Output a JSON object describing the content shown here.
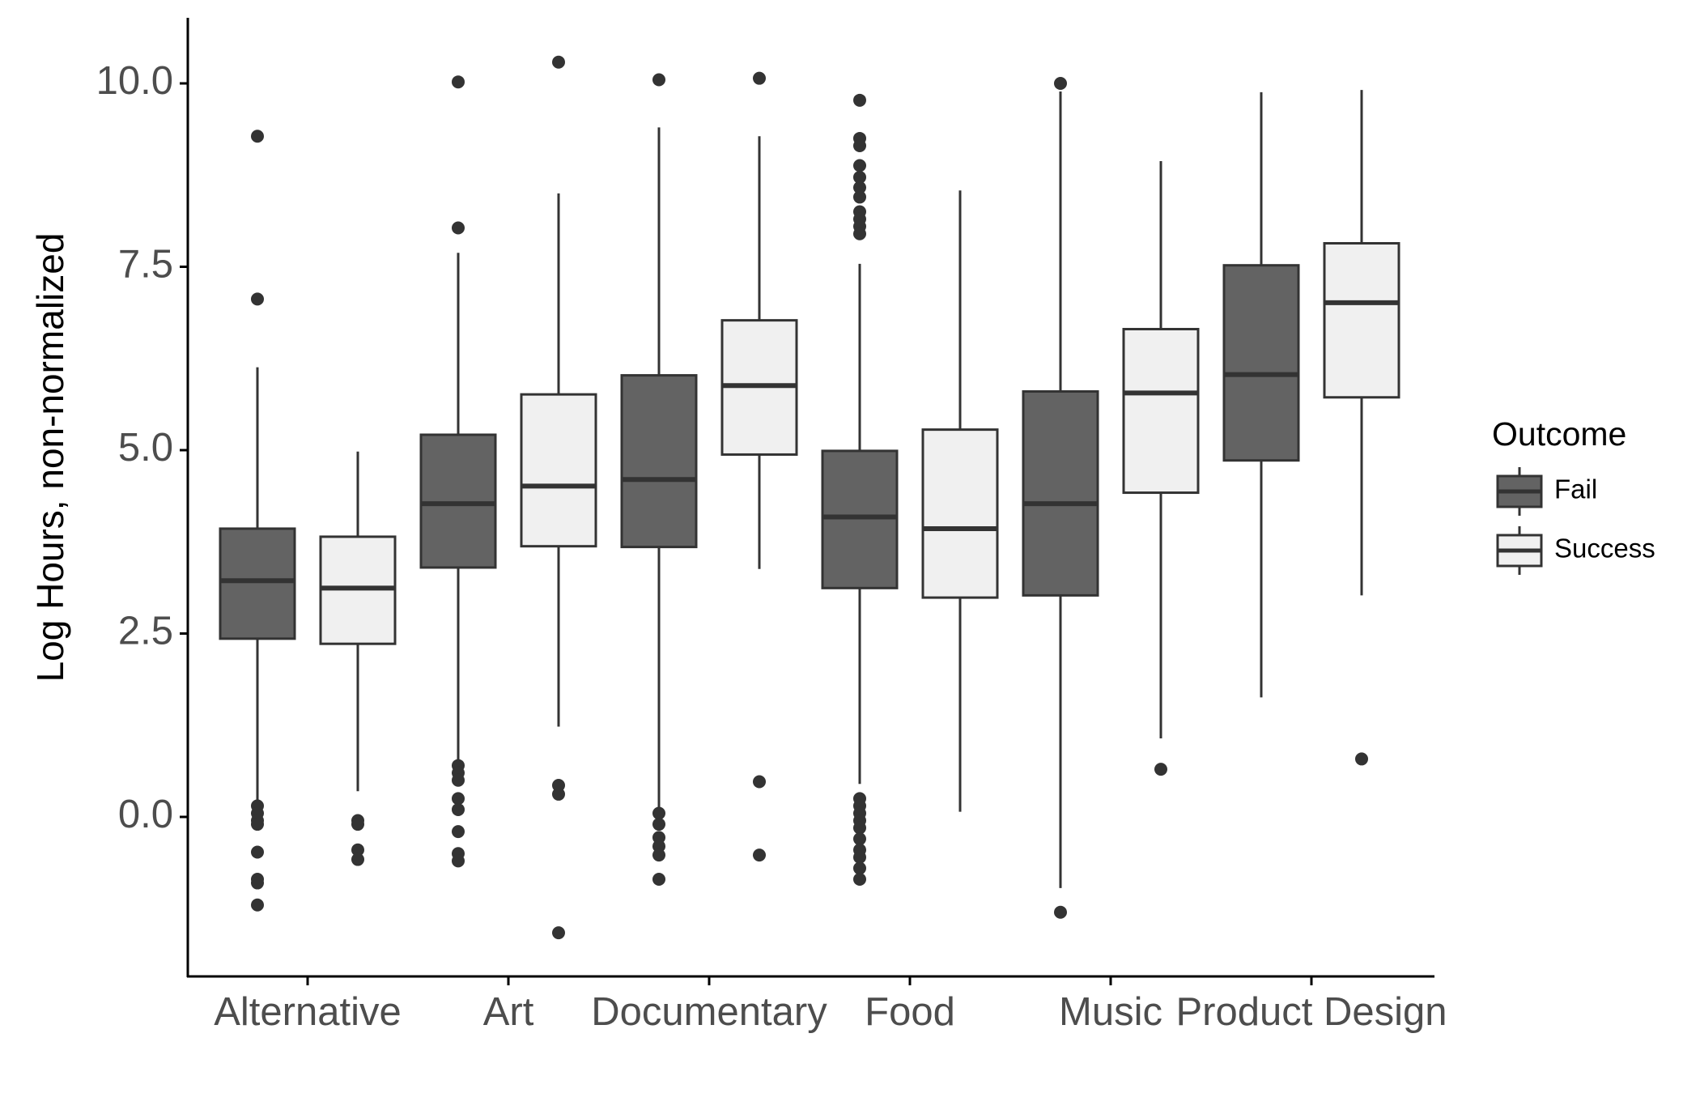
{
  "chart_data": {
    "type": "boxplot",
    "title": "",
    "xlabel": "",
    "ylabel": "Log Hours, non-normalized",
    "ylim": [
      -2.1,
      10.9
    ],
    "yticks": [
      "0.0",
      "2.5",
      "5.0",
      "7.5",
      "10.0"
    ],
    "ytick_values": [
      0,
      2.5,
      5,
      7.5,
      10
    ],
    "grid": false,
    "categories": [
      "Alternative",
      "Art",
      "Documentary",
      "Food",
      "Music",
      "Product Design"
    ],
    "legend": {
      "title": "Outcome",
      "placement": "right",
      "entries": [
        "Fail",
        "Success"
      ]
    },
    "colors": {
      "Fail": "#636363",
      "Success": "#f0f0f0",
      "outline": "#333333"
    },
    "series": [
      {
        "name": "Fail",
        "boxes": [
          {
            "category": "Alternative",
            "whisker_low": 0.15,
            "q1": 2.43,
            "median": 3.22,
            "q3": 3.93,
            "whisker_high": 6.13,
            "outliers": [
              9.28,
              7.06,
              0.15,
              0.05,
              -0.05,
              -0.1,
              -0.48,
              -0.85,
              -0.9,
              -1.2
            ]
          },
          {
            "category": "Art",
            "whisker_low": 0.75,
            "q1": 3.4,
            "median": 4.27,
            "q3": 5.21,
            "whisker_high": 7.69,
            "outliers": [
              10.02,
              8.03,
              0.7,
              0.6,
              0.5,
              0.25,
              0.1,
              -0.2,
              -0.5,
              -0.6
            ]
          },
          {
            "category": "Documentary",
            "whisker_low": 0.1,
            "q1": 3.68,
            "median": 4.6,
            "q3": 6.02,
            "whisker_high": 9.4,
            "outliers": [
              10.05,
              0.05,
              -0.1,
              -0.28,
              -0.4,
              -0.52,
              -0.85
            ]
          },
          {
            "category": "Food",
            "whisker_low": 0.45,
            "q1": 3.12,
            "median": 4.09,
            "q3": 4.99,
            "whisker_high": 7.54,
            "outliers": [
              9.77,
              9.25,
              9.15,
              8.88,
              8.72,
              8.58,
              8.45,
              8.25,
              8.15,
              8.05,
              7.95,
              0.25,
              0.15,
              0.05,
              -0.05,
              -0.15,
              -0.3,
              -0.45,
              -0.55,
              -0.7,
              -0.85
            ]
          },
          {
            "category": "Music",
            "whisker_low": -0.97,
            "q1": 3.02,
            "median": 4.27,
            "q3": 5.8,
            "whisker_high": 9.89,
            "outliers": [
              10.0,
              -1.3
            ]
          },
          {
            "category": "Product Design",
            "whisker_low": 1.63,
            "q1": 4.86,
            "median": 6.03,
            "q3": 7.52,
            "whisker_high": 9.88,
            "outliers": []
          }
        ]
      },
      {
        "name": "Success",
        "boxes": [
          {
            "category": "Alternative",
            "whisker_low": 0.35,
            "q1": 2.36,
            "median": 3.12,
            "q3": 3.82,
            "whisker_high": 4.98,
            "outliers": [
              -0.05,
              -0.1,
              -0.45,
              -0.58
            ]
          },
          {
            "category": "Art",
            "whisker_low": 1.23,
            "q1": 3.69,
            "median": 4.51,
            "q3": 5.76,
            "whisker_high": 8.5,
            "outliers": [
              10.29,
              0.43,
              0.31,
              -1.58
            ]
          },
          {
            "category": "Documentary",
            "whisker_low": 3.38,
            "q1": 4.94,
            "median": 5.88,
            "q3": 6.77,
            "whisker_high": 9.28,
            "outliers": [
              10.07,
              0.48,
              -0.52
            ]
          },
          {
            "category": "Food",
            "whisker_low": 0.07,
            "q1": 2.99,
            "median": 3.93,
            "q3": 5.28,
            "whisker_high": 8.54,
            "outliers": []
          },
          {
            "category": "Music",
            "whisker_low": 1.07,
            "q1": 4.42,
            "median": 5.78,
            "q3": 6.65,
            "whisker_high": 8.94,
            "outliers": [
              0.65
            ]
          },
          {
            "category": "Product Design",
            "whisker_low": 3.02,
            "q1": 5.72,
            "median": 7.01,
            "q3": 7.82,
            "whisker_high": 9.91,
            "outliers": [
              0.79
            ]
          }
        ]
      }
    ]
  }
}
